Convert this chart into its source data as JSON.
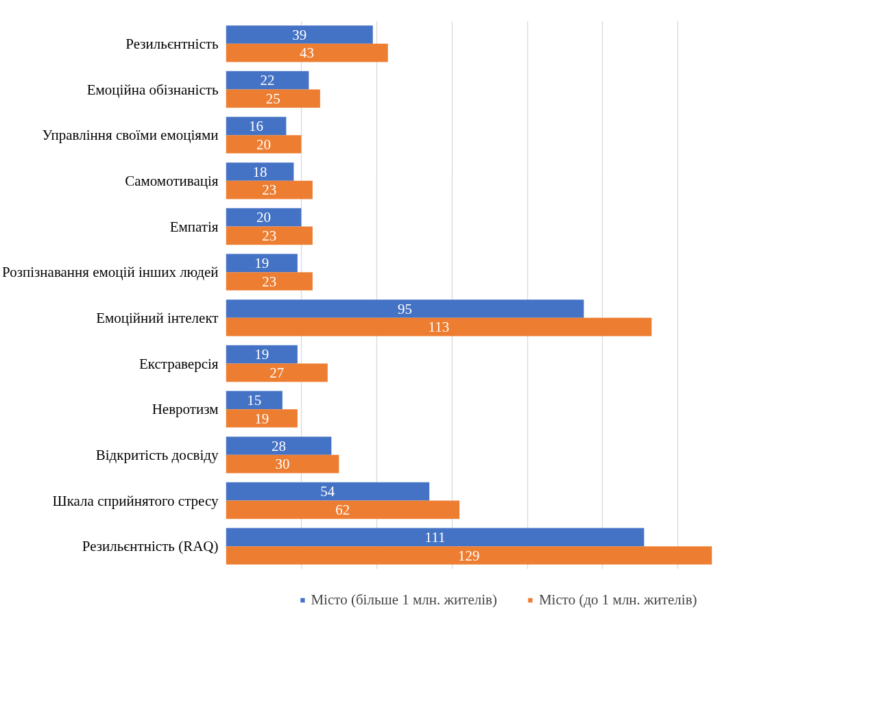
{
  "chart_data": {
    "type": "bar",
    "orientation": "horizontal",
    "categories": [
      "Резильєнтність",
      "Емоційна обізнаність",
      "Управління своїми емоціями",
      "Самомотивація",
      "Емпатія",
      "Розпізнавання емоцій інших людей",
      "Емоційний інтелект",
      "Екстраверсія",
      "Невротизм",
      "Відкритість досвіду",
      "Шкала сприйнятого стресу",
      "Резильєнтність (RAQ)"
    ],
    "series": [
      {
        "name": "Місто (більше 1 млн. жителів)",
        "color": "#4472c4",
        "values": [
          39,
          22,
          16,
          18,
          20,
          19,
          95,
          19,
          15,
          28,
          54,
          111
        ]
      },
      {
        "name": "Місто (до 1 млн. жителів)",
        "color": "#ed7d31",
        "values": [
          43,
          25,
          20,
          23,
          23,
          23,
          113,
          27,
          19,
          30,
          62,
          129
        ]
      }
    ],
    "tick_labels": "y",
    "grid": "x",
    "data_labels": true,
    "legend": "bottom"
  }
}
